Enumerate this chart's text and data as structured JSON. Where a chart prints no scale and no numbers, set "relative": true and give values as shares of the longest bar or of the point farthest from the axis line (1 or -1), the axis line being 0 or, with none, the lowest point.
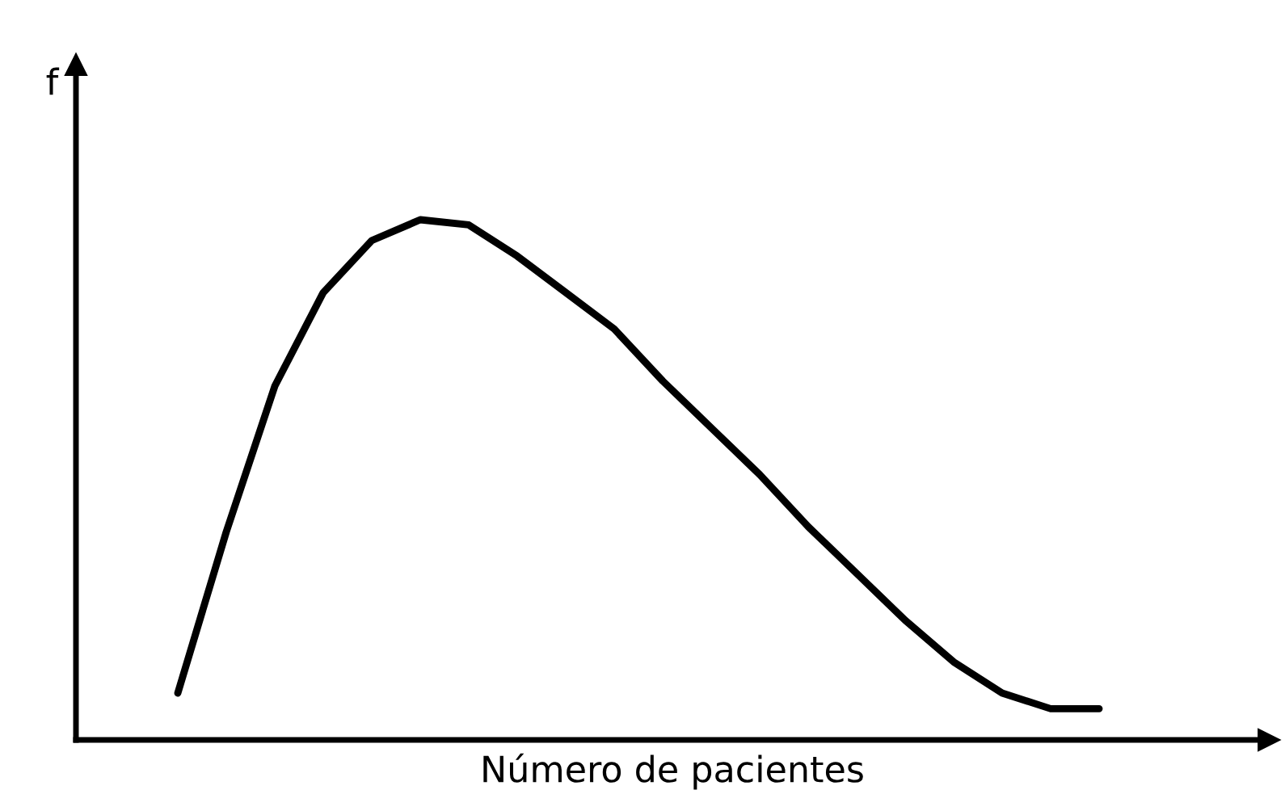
{
  "chart_data": {
    "type": "line",
    "relative": true,
    "xlabel": "Número de pacientes",
    "ylabel": "f",
    "categories": [
      null,
      null,
      null,
      null,
      null,
      null,
      null,
      null,
      null,
      null,
      null,
      null,
      null,
      null,
      null,
      null,
      null,
      null,
      null,
      null
    ],
    "series": [
      {
        "color": "#000000",
        "values": [
          0.09,
          0.4,
          0.68,
          0.86,
          0.96,
          1,
          0.99,
          0.93,
          0.86,
          0.79,
          0.69,
          0.6,
          0.51,
          0.41,
          0.32,
          0.23,
          0.15,
          0.09,
          0.06,
          0.06
        ]
      }
    ],
    "legend": false,
    "marker": "none",
    "line_style": "solid",
    "tick_labels": false
  }
}
